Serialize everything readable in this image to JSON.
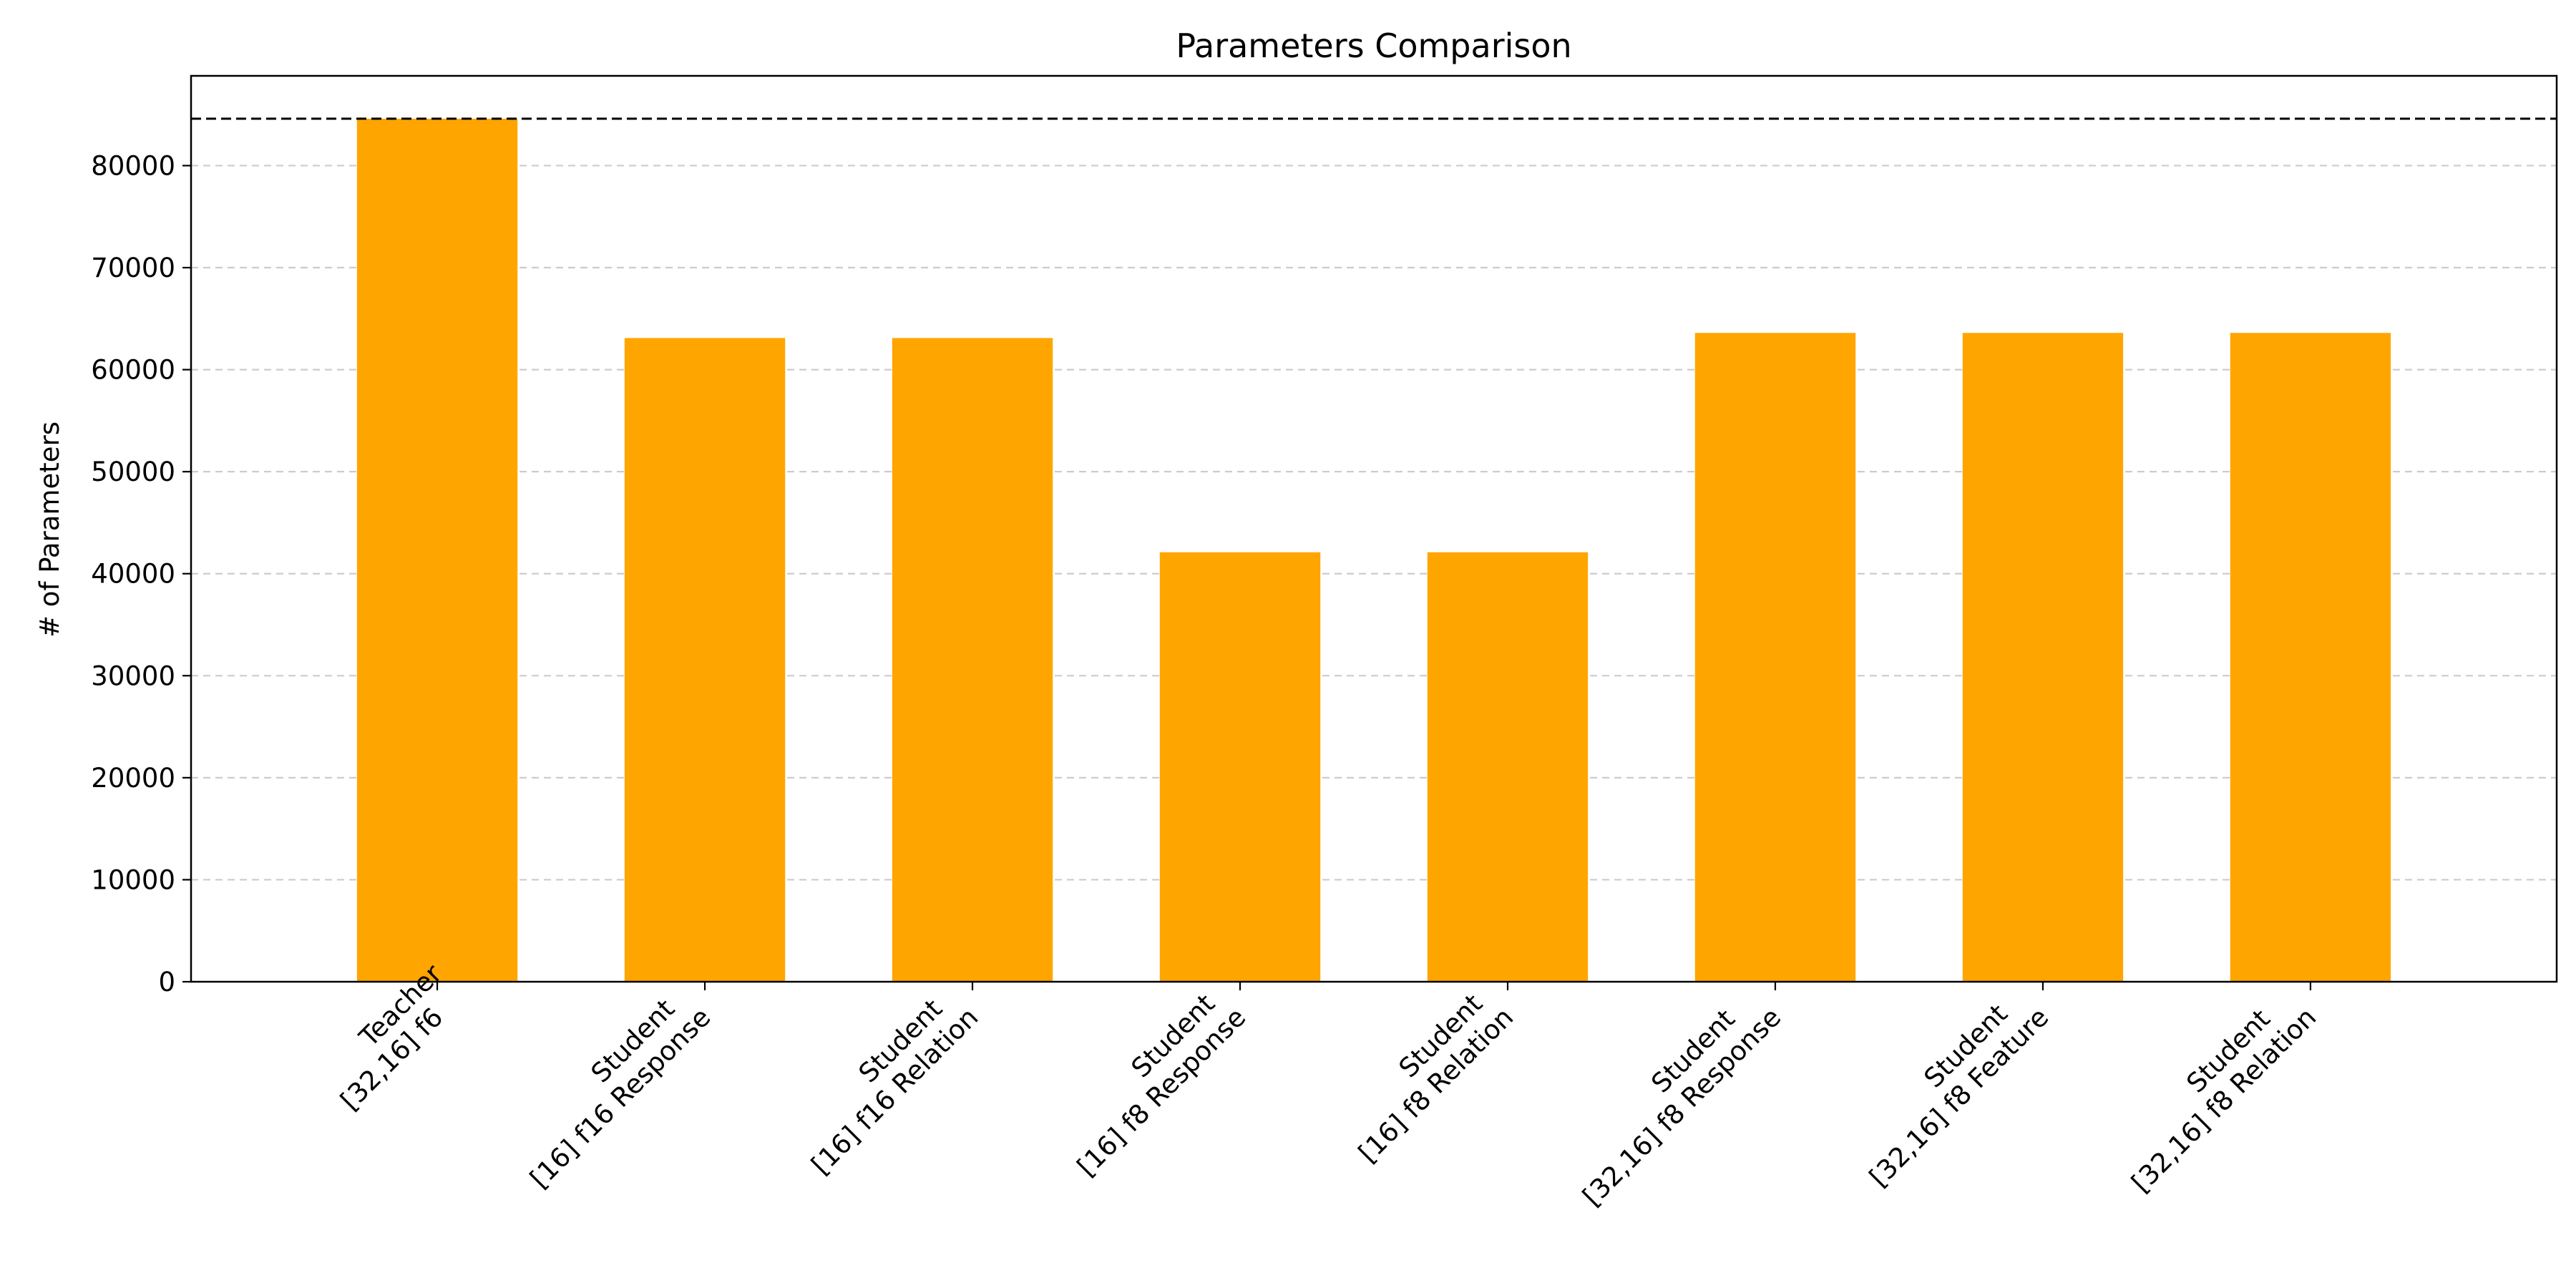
{
  "chart_data": {
    "type": "bar",
    "title": "Parameters Comparison",
    "xlabel": "",
    "ylabel": "# of Parameters",
    "categories": [
      [
        "Teacher",
        "[32,16] f6"
      ],
      [
        "Student",
        "[16] f16 Response"
      ],
      [
        "Student",
        "[16] f16 Relation"
      ],
      [
        "Student",
        "[16] f8 Response"
      ],
      [
        "Student",
        "[16] f8 Relation"
      ],
      [
        "Student",
        "[32,16] f8 Response"
      ],
      [
        "Student",
        "[32,16] f8 Feature"
      ],
      [
        "Student",
        "[32,16] f8 Relation"
      ]
    ],
    "values": [
      84600,
      63100,
      63100,
      42100,
      42100,
      63600,
      63600,
      63600
    ],
    "reference_line": 84600,
    "ylim": [
      0,
      88800
    ],
    "yticks": [
      0,
      10000,
      20000,
      30000,
      40000,
      50000,
      60000,
      70000,
      80000
    ],
    "grid": true,
    "legend": "none",
    "bar_color": "#FFA500",
    "grid_color": "#cccccc",
    "reference_line_color": "#000000"
  }
}
